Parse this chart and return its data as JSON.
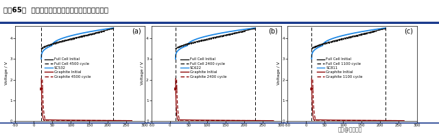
{
  "title": "图表65：  不同三元正极液态锂离子电池的循环寿命",
  "title_fontsize": 7.5,
  "panels": [
    {
      "label": "(a)",
      "dashed_x1": 20,
      "dashed_x2": 215,
      "xlim": [
        -50,
        300
      ],
      "ylim": [
        0,
        4.6
      ],
      "yticks": [
        0,
        1,
        2,
        3,
        4
      ],
      "xticks": [
        -50,
        0,
        50,
        100,
        150,
        200,
        250,
        300
      ],
      "ylabel": "Voltage / V",
      "legend": [
        {
          "label": "Full Cell Initial",
          "color": "#111111",
          "ls": "-"
        },
        {
          "label": "Full Cell 4500 cycle",
          "color": "#111111",
          "ls": "--"
        },
        {
          "label": "SC532",
          "color": "#1e88e5",
          "ls": "-"
        },
        {
          "label": "Graphite Initial",
          "color": "#8b0000",
          "ls": "-"
        },
        {
          "label": "Graphite 4500 cycle",
          "color": "#8b0000",
          "ls": "--"
        }
      ]
    },
    {
      "label": "(b)",
      "dashed_x1": 15,
      "dashed_x2": 230,
      "xlim": [
        -50,
        300
      ],
      "ylim": [
        0,
        4.6
      ],
      "yticks": [
        0,
        1,
        2,
        3,
        4
      ],
      "xticks": [
        -50,
        0,
        50,
        100,
        150,
        200,
        250,
        300
      ],
      "ylabel": "Voltage / V",
      "legend": [
        {
          "label": "Full Cell Initial",
          "color": "#111111",
          "ls": "-"
        },
        {
          "label": "Full Cell 2400 cycle",
          "color": "#111111",
          "ls": "--"
        },
        {
          "label": "SC622",
          "color": "#1e88e5",
          "ls": "-"
        },
        {
          "label": "Graphite Initial",
          "color": "#8b0000",
          "ls": "-"
        },
        {
          "label": "Graphite 2400 cycle",
          "color": "#8b0000",
          "ls": "--"
        }
      ]
    },
    {
      "label": "(c)",
      "dashed_x1": 15,
      "dashed_x2": 215,
      "xlim": [
        -50,
        300
      ],
      "ylim": [
        0,
        4.6
      ],
      "yticks": [
        0,
        1,
        2,
        3,
        4
      ],
      "xticks": [
        -50,
        0,
        50,
        100,
        150,
        200,
        250,
        300
      ],
      "ylabel": "Voltage / V",
      "legend": [
        {
          "label": "Full Cell Initial",
          "color": "#111111",
          "ls": "-"
        },
        {
          "label": "Full Cell 1100 cycle",
          "color": "#111111",
          "ls": "--"
        },
        {
          "label": "SC811",
          "color": "#1e88e5",
          "ls": "-"
        },
        {
          "label": "Graphite Initial",
          "color": "#8b0000",
          "ls": "-"
        },
        {
          "label": "Graphite 1100 cycle",
          "color": "#8b0000",
          "ls": "--"
        }
      ]
    }
  ],
  "header_line_color": "#1a3a8c",
  "watermark": "头条@未来智库",
  "background_color": "#ffffff"
}
